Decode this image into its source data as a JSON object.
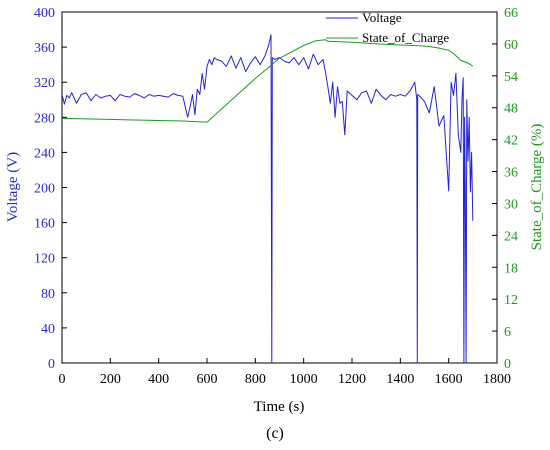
{
  "chart_data": {
    "type": "line",
    "caption": "(c)",
    "xlabel": "Time (s)",
    "ylabel_left": "Voltage (V)",
    "ylabel_right": "State_of_Charge (%)",
    "xlim": [
      0,
      1800
    ],
    "ylim_left": [
      0,
      400
    ],
    "ylim_right": [
      0,
      66
    ],
    "x_ticks": [
      "0",
      "200",
      "400",
      "600",
      "800",
      "1000",
      "1200",
      "1400",
      "1600",
      "1800"
    ],
    "y_left_ticks": [
      "0",
      "40",
      "80",
      "120",
      "160",
      "200",
      "240",
      "280",
      "320",
      "360",
      "400"
    ],
    "y_right_ticks": [
      "0",
      "6",
      "12",
      "18",
      "24",
      "30",
      "36",
      "42",
      "48",
      "54",
      "60",
      "66"
    ],
    "legend_position": "top-right",
    "grid": false,
    "colors": {
      "voltage": "#2323d6",
      "soc": "#1f9a1f"
    },
    "series": [
      {
        "name": "Voltage",
        "axis": "left",
        "x": [
          0,
          10,
          20,
          30,
          40,
          60,
          80,
          100,
          120,
          140,
          160,
          180,
          200,
          220,
          240,
          260,
          280,
          300,
          320,
          340,
          360,
          380,
          400,
          420,
          440,
          460,
          480,
          500,
          520,
          530,
          540,
          550,
          560,
          570,
          580,
          590,
          600,
          610,
          620,
          630,
          640,
          660,
          680,
          700,
          720,
          740,
          760,
          780,
          800,
          820,
          840,
          855,
          865,
          868,
          870,
          880,
          900,
          920,
          940,
          960,
          980,
          1000,
          1020,
          1040,
          1060,
          1080,
          1090,
          1100,
          1110,
          1120,
          1130,
          1140,
          1150,
          1160,
          1170,
          1180,
          1200,
          1220,
          1240,
          1260,
          1280,
          1300,
          1320,
          1340,
          1360,
          1380,
          1400,
          1420,
          1440,
          1460,
          1468,
          1470,
          1472,
          1480,
          1500,
          1520,
          1540,
          1560,
          1580,
          1600,
          1610,
          1620,
          1630,
          1640,
          1650,
          1655,
          1660,
          1663,
          1666,
          1669,
          1672,
          1675,
          1680,
          1685,
          1690,
          1695,
          1700
        ],
        "y": [
          306,
          295,
          305,
          302,
          308,
          296,
          306,
          308,
          299,
          306,
          302,
          304,
          305,
          299,
          306,
          304,
          303,
          307,
          305,
          302,
          306,
          304,
          305,
          304,
          303,
          307,
          305,
          304,
          280,
          292,
          306,
          283,
          312,
          306,
          330,
          312,
          338,
          346,
          340,
          348,
          346,
          344,
          338,
          350,
          336,
          348,
          332,
          342,
          349,
          340,
          350,
          362,
          374,
          0,
          348,
          346,
          348,
          344,
          342,
          348,
          340,
          348,
          335,
          352,
          340,
          346,
          332,
          315,
          296,
          320,
          280,
          315,
          296,
          298,
          260,
          310,
          305,
          300,
          308,
          310,
          296,
          312,
          305,
          300,
          306,
          304,
          306,
          304,
          310,
          320,
          300,
          0,
          306,
          304,
          298,
          285,
          315,
          270,
          282,
          196,
          320,
          305,
          330,
          260,
          240,
          300,
          325,
          0,
          280,
          200,
          0,
          300,
          230,
          280,
          195,
          240,
          162
        ]
      },
      {
        "name": "State_of_Charge",
        "axis": "right",
        "x": [
          0,
          100,
          200,
          300,
          400,
          500,
          550,
          600,
          700,
          800,
          900,
          1000,
          1050,
          1090,
          1100,
          1200,
          1300,
          1400,
          1500,
          1550,
          1600,
          1620,
          1650,
          1680,
          1700
        ],
        "y": [
          46,
          45.9,
          45.8,
          45.7,
          45.6,
          45.5,
          45.4,
          45.3,
          49.4,
          53.5,
          57.3,
          59.7,
          60.6,
          60.8,
          60.5,
          60.3,
          60.0,
          59.8,
          59.6,
          59.3,
          58.8,
          58.2,
          56.9,
          56.4,
          55.8
        ]
      }
    ]
  }
}
